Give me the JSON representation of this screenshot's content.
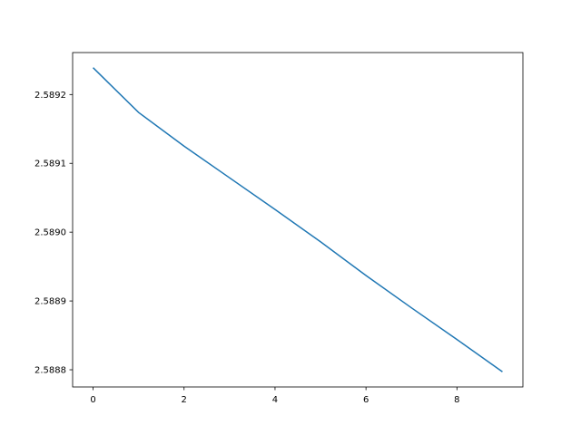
{
  "chart_data": {
    "type": "line",
    "title": "",
    "xlabel": "",
    "ylabel": "",
    "x": [
      0,
      1,
      2,
      3,
      4,
      5,
      6,
      7,
      8,
      9
    ],
    "series": [
      {
        "values": [
          2.589239,
          2.589174,
          2.589125,
          2.589079,
          2.589033,
          2.588986,
          2.588937,
          2.58889,
          2.588844,
          2.588797
        ],
        "color": "#1f77b4"
      }
    ],
    "xlim": [
      -0.45,
      9.45
    ],
    "ylim": [
      2.588775,
      2.589261
    ],
    "xticks": [
      0,
      2,
      4,
      6,
      8
    ],
    "xtick_labels": [
      "0",
      "2",
      "4",
      "6",
      "8"
    ],
    "yticks": [
      2.5888,
      2.5889,
      2.589,
      2.5891,
      2.5892
    ],
    "ytick_labels": [
      "2.5888",
      "2.5889",
      "2.5890",
      "2.5891",
      "2.5892"
    ],
    "grid": false,
    "legend": "none"
  }
}
